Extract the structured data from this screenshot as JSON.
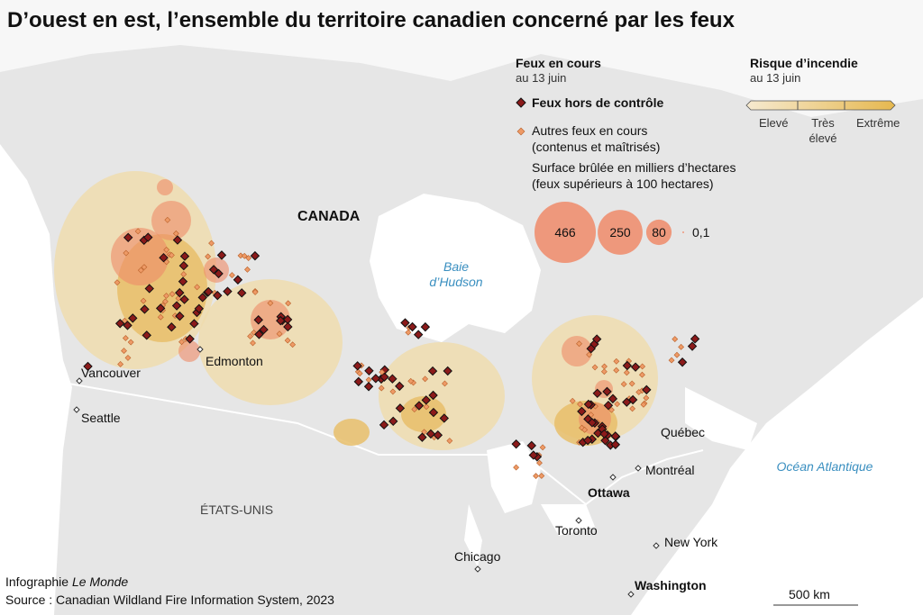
{
  "title": "D’ouest en est, l’ensemble du territoire canadien concerné par les feux",
  "legend_fires": {
    "title": "Feux en cours",
    "subtitle": "au 13 juin",
    "out_of_control": "Feux hors de contrôle",
    "other": "Autres feux en cours",
    "other_note": "(contenus et maîtrisés)",
    "area_title": "Surface brûlée en milliers d’hectares",
    "area_note": "(feux supérieurs à 100 hectares)",
    "sizes": [
      466,
      250,
      80,
      {
        "value": 0.1,
        "label": "0,1"
      }
    ]
  },
  "legend_risk": {
    "title": "Risque d’incendie",
    "subtitle": "au 13 juin",
    "levels": [
      "Elevé",
      "Très élevé",
      "Extrême"
    ]
  },
  "places": {
    "canada": "CANADA",
    "hudson": "Baie d’Hudson",
    "vancouver": "Vancouver",
    "edmonton": "Edmonton",
    "seattle": "Seattle",
    "usa": "ÉTATS-UNIS",
    "quebec": "Québec",
    "montreal": "Montréal",
    "ottawa": "Ottawa",
    "toronto": "Toronto",
    "chicago": "Chicago",
    "newyork": "New York",
    "washington": "Washington",
    "atlantic": "Océan Atlantique"
  },
  "credits": {
    "prefix": "Infographie",
    "name": "Le Monde",
    "source": "Source : Canadian Wildland Fire Information System, 2023",
    "scale": "500 km"
  }
}
